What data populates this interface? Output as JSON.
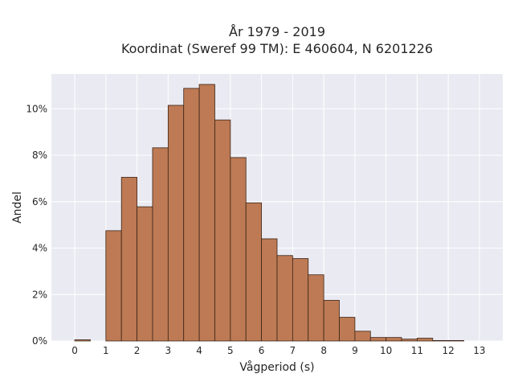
{
  "chart_data": {
    "type": "bar",
    "title_line1": "År 1979 - 2019",
    "title_line2": "Koordinat (Sweref 99 TM): E 460604, N 6201226",
    "xlabel": "Vågperiod (s)",
    "ylabel": "Andel",
    "xlim": [
      -0.75,
      13.75
    ],
    "ylim": [
      0,
      11.5
    ],
    "grid": true,
    "bin_width": 0.5,
    "bin_starts": [
      0,
      0.5,
      1,
      1.5,
      2,
      2.5,
      3,
      3.5,
      4,
      4.5,
      5,
      5.5,
      6,
      6.5,
      7,
      7.5,
      8,
      8.5,
      9,
      9.5,
      10,
      10.5,
      11,
      11.5,
      12,
      12.5
    ],
    "values": [
      0.05,
      0.0,
      4.75,
      7.05,
      5.78,
      8.32,
      10.15,
      10.88,
      11.05,
      9.52,
      7.9,
      5.95,
      4.4,
      3.68,
      3.55,
      2.85,
      1.75,
      1.02,
      0.42,
      0.15,
      0.15,
      0.08,
      0.12,
      0.02,
      0.02,
      0.0
    ],
    "xticks": [
      "0",
      "1",
      "2",
      "3",
      "4",
      "5",
      "6",
      "7",
      "8",
      "9",
      "10",
      "11",
      "12",
      "13"
    ],
    "yticks": [
      "0%",
      "2%",
      "4%",
      "6%",
      "8%",
      "10%"
    ],
    "colors": {
      "bar_fill": "#bd7a54",
      "bar_edge": "#3b2417",
      "plot_bg": "#eaeaf2",
      "grid": "#ffffff"
    }
  }
}
